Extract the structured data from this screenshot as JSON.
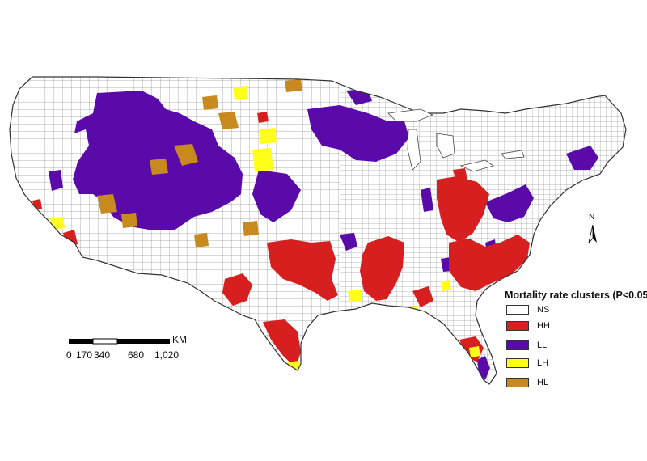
{
  "legend": {
    "title": "Mortality rate clusters (P<0.05)",
    "items": [
      {
        "label": "NS",
        "color": "#ffffff"
      },
      {
        "label": "HH",
        "color": "#d71f1f"
      },
      {
        "label": "LL",
        "color": "#5a0aa8"
      },
      {
        "label": "LH",
        "color": "#ffff1a"
      },
      {
        "label": "HL",
        "color": "#c88a1e"
      }
    ]
  },
  "scale_bar": {
    "unit": "KM",
    "ticks": [
      "0",
      "170",
      "340",
      "680",
      "1,020"
    ]
  },
  "north_arrow": {
    "label": "N"
  },
  "colors": {
    "outline": "#444444",
    "land": "#ffffff"
  }
}
